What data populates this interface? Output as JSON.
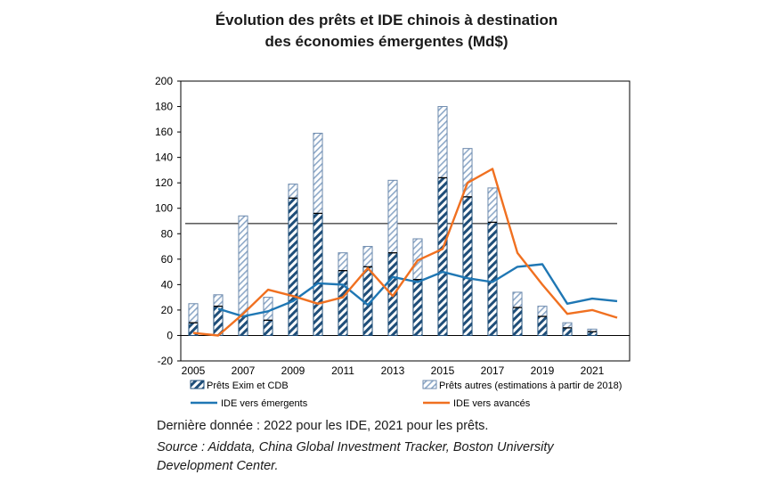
{
  "title_line1": "Évolution des prêts et IDE chinois à destination",
  "title_line2": "des économies émergentes (Md$)",
  "note": "Dernière donnée : 2022 pour les IDE, 2021 pour les prêts.",
  "source_line1": "Source : Aiddata, China Global Investment Tracker, Boston University",
  "source_line2": "Development Center.",
  "colors": {
    "bar_exim": "#1f4e79",
    "bar_autres": "#8ea9c8",
    "ide_emergents": "#1f77b4",
    "ide_avances": "#f07020"
  },
  "chart_data": {
    "type": "bar+line",
    "x": [
      2005,
      2006,
      2007,
      2008,
      2009,
      2010,
      2011,
      2012,
      2013,
      2014,
      2015,
      2016,
      2017,
      2018,
      2019,
      2020,
      2021,
      2022
    ],
    "x_tick_labels": [
      "2005",
      "2007",
      "2009",
      "2011",
      "2013",
      "2015",
      "2017",
      "2019",
      "2021"
    ],
    "y_ticks": [
      -20,
      0,
      20,
      40,
      60,
      80,
      100,
      120,
      140,
      160,
      180,
      200
    ],
    "ylim": [
      -20,
      200
    ],
    "reference_line": 88,
    "series": [
      {
        "name": "Prêts Exim et CDB",
        "kind": "bar-stack-bottom",
        "pattern": "diagonal-hatch-dark",
        "values": [
          10,
          23,
          15,
          12,
          108,
          96,
          51,
          54,
          65,
          44,
          124,
          109,
          89,
          22,
          15,
          6,
          3,
          null
        ]
      },
      {
        "name": "Prêts autres (estimations à partir de 2018)",
        "kind": "bar-stack-top",
        "pattern": "diagonal-hatch-light",
        "values": [
          15,
          9,
          79,
          18,
          11,
          63,
          14,
          16,
          57,
          32,
          56,
          38,
          27,
          12,
          8,
          4,
          2,
          null
        ]
      },
      {
        "name": "IDE vers émergents",
        "kind": "line",
        "values": [
          null,
          21,
          15,
          19,
          27,
          41,
          40,
          24,
          46,
          42,
          50,
          45,
          42,
          54,
          56,
          25,
          29,
          27
        ]
      },
      {
        "name": "IDE vers avancés",
        "kind": "line",
        "values": [
          2,
          0,
          17,
          36,
          31,
          25,
          30,
          53,
          31,
          59,
          68,
          120,
          131,
          65,
          40,
          17,
          20,
          14
        ]
      }
    ],
    "legend": [
      {
        "label": "Prêts Exim et CDB",
        "marker": "hatch-dark"
      },
      {
        "label": "Prêts autres (estimations à partir de 2018)",
        "marker": "hatch-light"
      },
      {
        "label": "IDE vers émergents",
        "marker": "line-blue"
      },
      {
        "label": "IDE vers avancés",
        "marker": "line-orange"
      }
    ],
    "legend_position": "bottom",
    "grid": false
  }
}
